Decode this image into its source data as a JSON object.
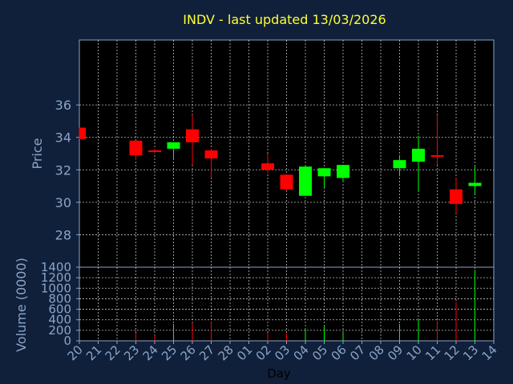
{
  "chart_data": {
    "type": "candlestick",
    "title": "INDV - last updated 13/03/2026",
    "ylabel": "Price",
    "volume_label": "Volume (0000)",
    "xlabel": "Day",
    "ylim": [
      26,
      40
    ],
    "volume_ylim": [
      0,
      1400
    ],
    "y_ticks": [
      28,
      30,
      32,
      34,
      36
    ],
    "volume_ticks": [
      0,
      200,
      400,
      600,
      800,
      1000,
      1200,
      1400
    ],
    "x_ticks": [
      "20",
      "21",
      "22",
      "23",
      "24",
      "25",
      "26",
      "27",
      "28",
      "01",
      "02",
      "03",
      "04",
      "05",
      "06",
      "07",
      "08",
      "09",
      "10",
      "11",
      "12",
      "13",
      "14"
    ],
    "grid": true,
    "colors": {
      "up": "#00ff00",
      "down": "#ff0000",
      "grid": "#ffffff",
      "axis": "#8aa4c8",
      "title": "#ffff33",
      "background": "#10203a"
    },
    "candles": [
      {
        "day": "20",
        "open": 34.6,
        "close": 33.9,
        "high": 34.6,
        "low": 33.9,
        "volume": 0
      },
      {
        "day": "23",
        "open": 33.8,
        "close": 32.9,
        "high": 33.8,
        "low": 32.6,
        "volume": 150
      },
      {
        "day": "24",
        "open": 33.2,
        "close": 33.1,
        "high": 33.3,
        "low": 33.0,
        "volume": 100
      },
      {
        "day": "25",
        "open": 33.3,
        "close": 33.7,
        "high": 33.7,
        "low": 32.7,
        "volume": 320
      },
      {
        "day": "26",
        "open": 34.5,
        "close": 33.7,
        "high": 35.4,
        "low": 32.3,
        "volume": 340
      },
      {
        "day": "27",
        "open": 33.2,
        "close": 32.7,
        "high": 33.3,
        "low": 31.5,
        "volume": 360
      },
      {
        "day": "02",
        "open": 32.4,
        "close": 32.0,
        "high": 33.0,
        "low": 31.8,
        "volume": 150
      },
      {
        "day": "03",
        "open": 31.7,
        "close": 30.8,
        "high": 31.7,
        "low": 30.7,
        "volume": 140
      },
      {
        "day": "04",
        "open": 30.4,
        "close": 32.2,
        "high": 32.3,
        "low": 30.4,
        "volume": 230
      },
      {
        "day": "05",
        "open": 31.6,
        "close": 32.1,
        "high": 32.1,
        "low": 30.9,
        "volume": 270
      },
      {
        "day": "06",
        "open": 31.5,
        "close": 32.3,
        "high": 32.3,
        "low": 31.3,
        "volume": 180
      },
      {
        "day": "09",
        "open": 32.1,
        "close": 32.6,
        "high": 32.9,
        "low": 31.6,
        "volume": 320
      },
      {
        "day": "10",
        "open": 32.5,
        "close": 33.3,
        "high": 34.1,
        "low": 30.7,
        "volume": 420
      },
      {
        "day": "11",
        "open": 32.9,
        "close": 32.8,
        "high": 35.4,
        "low": 32.3,
        "volume": 380
      },
      {
        "day": "12",
        "open": 30.8,
        "close": 29.9,
        "high": 31.5,
        "low": 29.3,
        "volume": 740
      },
      {
        "day": "13",
        "open": 31.0,
        "close": 31.2,
        "high": 32.2,
        "low": 30.5,
        "volume": 1350
      }
    ]
  }
}
